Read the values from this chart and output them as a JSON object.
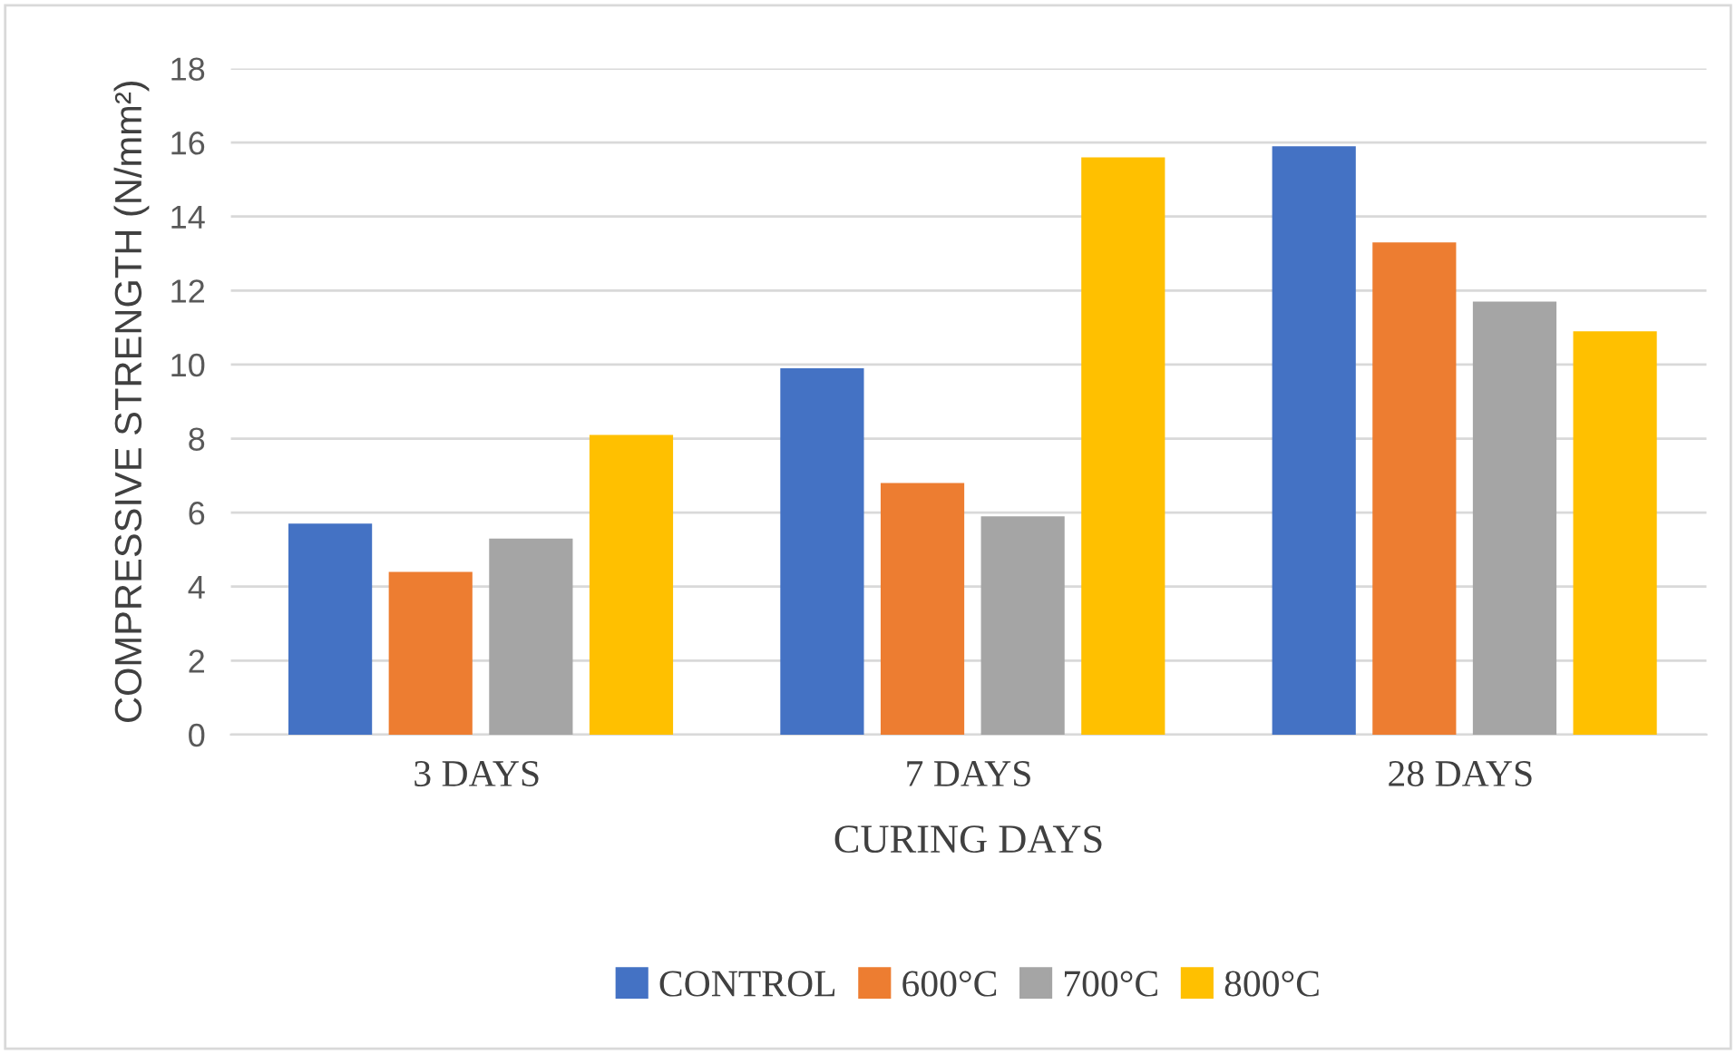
{
  "chart_data": {
    "type": "bar",
    "categories": [
      "3 DAYS",
      "7 DAYS",
      "28 DAYS"
    ],
    "xlabel": "CURING DAYS",
    "ylabel": "COMPRESSIVE STRENGTH (N/mm²)",
    "series": [
      {
        "name": "CONTROL",
        "color": "#4472c4",
        "values": [
          5.7,
          9.9,
          15.9
        ]
      },
      {
        "name": "600°C",
        "color": "#ed7d31",
        "values": [
          4.4,
          6.8,
          13.3
        ]
      },
      {
        "name": "700°C",
        "color": "#a5a5a5",
        "values": [
          5.3,
          5.9,
          11.7
        ]
      },
      {
        "name": "800°C",
        "color": "#ffc000",
        "values": [
          8.1,
          15.6,
          10.9
        ]
      }
    ],
    "ylim": [
      0,
      18
    ],
    "yticks": [
      0,
      2,
      4,
      6,
      8,
      10,
      12,
      14,
      16,
      18
    ],
    "grid": "y",
    "legend": "bottom"
  }
}
